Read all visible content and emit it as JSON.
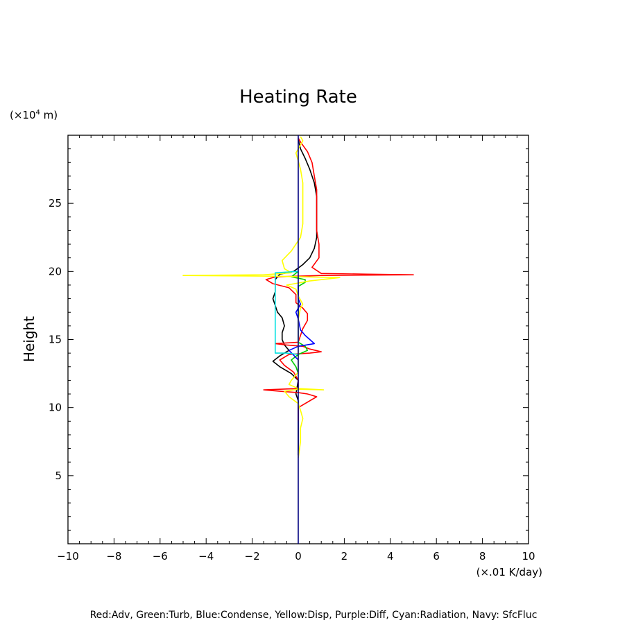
{
  "chart_data": {
    "type": "line",
    "title": "Heating Rate",
    "xlabel": "",
    "ylabel": "Height",
    "x_unit": "(×.01 K/day)",
    "y_unit_prefix": "(×10",
    "y_unit_exp": "4",
    "y_unit_suffix": " m)",
    "xlim": [
      -10,
      10
    ],
    "ylim": [
      0,
      30
    ],
    "x_ticks": [
      -10,
      -8,
      -6,
      -4,
      -2,
      0,
      2,
      4,
      6,
      8,
      10
    ],
    "y_ticks": [
      5,
      10,
      15,
      20,
      25
    ],
    "grid": false,
    "legend_text": "Red:Adv, Green:Turb, Blue:Condense, Yellow:Disp, Purple:Diff, Cyan:Radiation, Navy: SfcFluc",
    "colors": {
      "frame": "#000000",
      "red": "#ff0000",
      "green": "#00cc00",
      "blue": "#0000ff",
      "yellow": "#ffff00",
      "purple": "#a000c0",
      "cyan": "#00e0e0",
      "navy": "#000080",
      "black": "#000000"
    },
    "series": [
      {
        "color": "#000000",
        "points": [
          [
            0,
            6.5
          ],
          [
            0,
            10.5
          ],
          [
            -0.1,
            11
          ],
          [
            0,
            12
          ],
          [
            -0.3,
            12.5
          ],
          [
            -0.8,
            13
          ],
          [
            -1.1,
            13.4
          ],
          [
            -0.8,
            13.8
          ],
          [
            -0.4,
            14.2
          ],
          [
            -0.6,
            14.6
          ],
          [
            -0.7,
            15
          ],
          [
            -0.7,
            15.5
          ],
          [
            -0.6,
            16
          ],
          [
            -0.7,
            16.6
          ],
          [
            -0.9,
            17
          ],
          [
            -1,
            17.5
          ],
          [
            -1.1,
            18
          ],
          [
            -1,
            18.5
          ],
          [
            -1,
            19
          ],
          [
            -1,
            19.4
          ],
          [
            -0.8,
            19.8
          ],
          [
            -0.2,
            20
          ],
          [
            0.2,
            20.5
          ],
          [
            0.5,
            21
          ],
          [
            0.7,
            21.7
          ],
          [
            0.8,
            22.5
          ],
          [
            0.8,
            23.5
          ],
          [
            0.8,
            24.5
          ],
          [
            0.8,
            25.5
          ],
          [
            0.7,
            26.5
          ],
          [
            0.5,
            27.5
          ],
          [
            0.3,
            28.3
          ],
          [
            0.1,
            29
          ],
          [
            0,
            29.7
          ]
        ]
      },
      {
        "color": "#ff0000",
        "points": [
          [
            0,
            9
          ],
          [
            0,
            10
          ],
          [
            0.8,
            10.8
          ],
          [
            0.4,
            11
          ],
          [
            0,
            11.1
          ],
          [
            -0.8,
            11.2
          ],
          [
            -1.5,
            11.3
          ],
          [
            0,
            11.4
          ],
          [
            0,
            12
          ],
          [
            -0.2,
            12.6
          ],
          [
            -0.6,
            13.1
          ],
          [
            -0.8,
            13.5
          ],
          [
            -0.4,
            13.9
          ],
          [
            0.5,
            14
          ],
          [
            1,
            14.1
          ],
          [
            0.5,
            14.3
          ],
          [
            0.2,
            14.5
          ],
          [
            -0.5,
            14.6
          ],
          [
            -1,
            14.7
          ],
          [
            0,
            14.8
          ],
          [
            0.1,
            15.3
          ],
          [
            0.2,
            15.8
          ],
          [
            0.4,
            16.4
          ],
          [
            0.4,
            16.9
          ],
          [
            0.2,
            17.3
          ],
          [
            -0.1,
            17.7
          ],
          [
            -0.1,
            18.3
          ],
          [
            -0.4,
            18.8
          ],
          [
            -1.1,
            19.1
          ],
          [
            -1.4,
            19.4
          ],
          [
            -1,
            19.6
          ],
          [
            1,
            19.7
          ],
          [
            5,
            19.75
          ],
          [
            3,
            19.8
          ],
          [
            1,
            19.85
          ],
          [
            0.6,
            20.3
          ],
          [
            0.9,
            21
          ],
          [
            0.9,
            22
          ],
          [
            0.8,
            23
          ],
          [
            0.8,
            24
          ],
          [
            0.8,
            25
          ],
          [
            0.8,
            26
          ],
          [
            0.7,
            27
          ],
          [
            0.6,
            28
          ],
          [
            0.4,
            28.8
          ],
          [
            0.1,
            29.5
          ],
          [
            0,
            29.8
          ]
        ]
      },
      {
        "color": "#00cc00",
        "points": [
          [
            0,
            12.5
          ],
          [
            -0.1,
            13
          ],
          [
            -0.3,
            13.5
          ],
          [
            0,
            13.9
          ],
          [
            0.4,
            14.2
          ],
          [
            0.3,
            14.5
          ],
          [
            0,
            14.8
          ],
          [
            0,
            18.9
          ],
          [
            0.3,
            19.2
          ],
          [
            0.3,
            19.4
          ],
          [
            -0.3,
            19.6
          ],
          [
            0,
            20
          ]
        ]
      },
      {
        "color": "#0000ff",
        "points": [
          [
            0,
            13.5
          ],
          [
            -0.4,
            14.2
          ],
          [
            0,
            14.5
          ],
          [
            0.7,
            14.7
          ],
          [
            0.3,
            15.3
          ],
          [
            0.1,
            15.7
          ],
          [
            0,
            16.5
          ],
          [
            -0.1,
            17
          ],
          [
            0.1,
            17.6
          ],
          [
            0,
            18
          ],
          [
            0,
            19
          ]
        ]
      },
      {
        "color": "#ffff00",
        "points": [
          [
            0,
            6.3
          ],
          [
            0.1,
            7.5
          ],
          [
            0.1,
            8.5
          ],
          [
            0.2,
            9.2
          ],
          [
            0.1,
            9.8
          ],
          [
            0,
            10.3
          ],
          [
            -0.4,
            10.8
          ],
          [
            -0.6,
            11.2
          ],
          [
            0,
            11.35
          ],
          [
            1.1,
            11.3
          ],
          [
            0,
            11.4
          ],
          [
            -0.4,
            11.7
          ],
          [
            -0.3,
            12
          ],
          [
            0,
            12.6
          ],
          [
            0,
            16.5
          ],
          [
            0.1,
            17.3
          ],
          [
            0.2,
            17.6
          ],
          [
            0,
            18.2
          ],
          [
            -0.1,
            18.7
          ],
          [
            -0.5,
            19
          ],
          [
            0.5,
            19.3
          ],
          [
            1.8,
            19.55
          ],
          [
            -1.2,
            19.65
          ],
          [
            -5,
            19.7
          ],
          [
            -1.5,
            19.75
          ],
          [
            -0.3,
            19.9
          ],
          [
            -0.6,
            20.2
          ],
          [
            -0.7,
            20.8
          ],
          [
            -0.3,
            21.5
          ],
          [
            0.1,
            22.5
          ],
          [
            0.2,
            23.5
          ],
          [
            0.2,
            25
          ],
          [
            0.2,
            26.5
          ],
          [
            0.1,
            27.5
          ],
          [
            -0.1,
            28.7
          ],
          [
            0.2,
            29.6
          ],
          [
            0.1,
            29.9
          ]
        ]
      },
      {
        "color": "#00e0e0",
        "points": [
          [
            0,
            13.9
          ],
          [
            -0.5,
            14
          ],
          [
            -1,
            14
          ],
          [
            -1,
            16
          ],
          [
            -1,
            18
          ],
          [
            -1,
            19.9
          ],
          [
            -0.5,
            19.95
          ],
          [
            0,
            20
          ]
        ]
      },
      {
        "color": "#000080",
        "points": [
          [
            0,
            0
          ],
          [
            0,
            30
          ]
        ]
      }
    ]
  }
}
